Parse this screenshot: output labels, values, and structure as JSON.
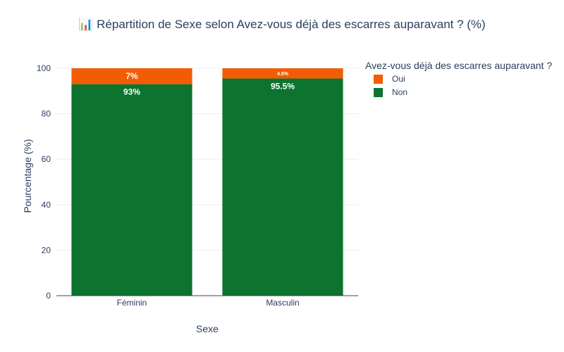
{
  "chart_data": {
    "type": "bar",
    "stacked": true,
    "title": "📊 Répartition de Sexe selon Avez-vous déjà des escarres auparavant ? (%)",
    "xlabel": "Sexe",
    "ylabel": "Pourcentage (%)",
    "ylim": [
      0,
      100
    ],
    "yticks": [
      0,
      20,
      40,
      60,
      80,
      100
    ],
    "categories": [
      "Féminin",
      "Masculin"
    ],
    "legend_title": "Avez-vous déjà des escarres auparavant ?",
    "legend_position": "top-right",
    "grid": true,
    "series": [
      {
        "name": "Non",
        "values": [
          93,
          95.5
        ],
        "labels": [
          "93%",
          "95.5%"
        ],
        "color": "#0c742f"
      },
      {
        "name": "Oui",
        "values": [
          7,
          4.5
        ],
        "labels": [
          "7%",
          "4.5%"
        ],
        "color": "#f25c05"
      }
    ],
    "legend_order": [
      "Oui",
      "Non"
    ]
  }
}
